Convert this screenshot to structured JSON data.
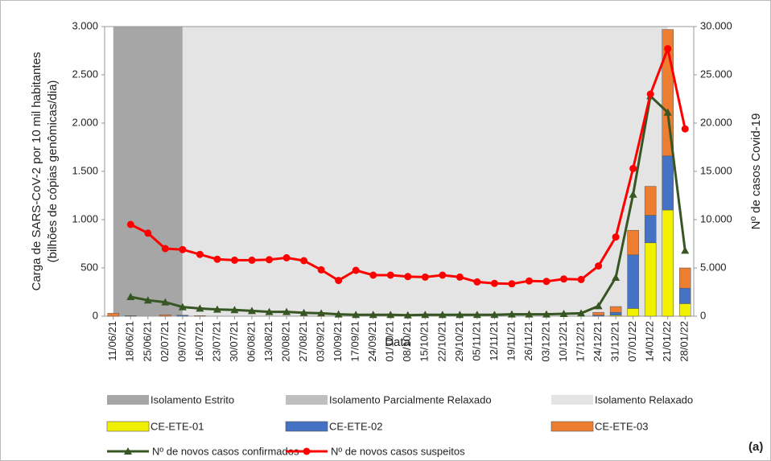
{
  "chart_data": {
    "type": "bar-line",
    "x_label": "Data",
    "y_label": [
      "Carga de SARS-CoV-2 por 10 mil habitantes",
      "(bilhões de cópias genômicas/dia)"
    ],
    "y2_label": "Nº de casos Covid-19",
    "annotation": "(a)",
    "categories": [
      "11/06/21",
      "18/06/21",
      "25/06/21",
      "02/07/21",
      "09/07/21",
      "16/07/21",
      "23/07/21",
      "30/07/21",
      "06/08/21",
      "13/08/21",
      "20/08/21",
      "27/08/21",
      "03/09/21",
      "10/09/21",
      "17/09/21",
      "24/09/21",
      "01/10/21",
      "08/10/21",
      "15/10/21",
      "22/10/21",
      "29/10/21",
      "05/11/21",
      "12/11/21",
      "19/11/21",
      "26/11/21",
      "03/12/21",
      "10/12/21",
      "17/12/21",
      "24/12/21",
      "31/12/21",
      "07/01/22",
      "14/01/22",
      "21/01/22",
      "28/01/22"
    ],
    "regions": [
      {
        "name": "Isolamento Estrito",
        "color": "#a6a6a6",
        "start": "11/06/21",
        "end": "09/07/21"
      },
      {
        "name": "Isolamento Parcialmente Relaxado",
        "color": "#bfbfbf"
      },
      {
        "name": "Isolamento Relaxado",
        "color": "#e4e4e4",
        "start": "09/07/21",
        "end": "21/01/22"
      }
    ],
    "ylim": [
      0,
      3000
    ],
    "yticks": [
      0,
      {
        "value": 500,
        "label": "500"
      },
      {
        "value": 1000,
        "label": "1.000"
      },
      {
        "value": 1500,
        "label": "1.500"
      },
      {
        "value": 2000,
        "label": "2.000"
      },
      {
        "value": 2500,
        "label": "2.500"
      },
      {
        "value": 3000,
        "label": "3.000"
      }
    ],
    "y2lim": [
      0,
      30000
    ],
    "y2ticks": [
      0,
      {
        "value": 5000,
        "label": "5.000"
      },
      {
        "value": 10000,
        "label": "10.000"
      },
      {
        "value": 15000,
        "label": "15.000"
      },
      {
        "value": 20000,
        "label": "20.000"
      },
      {
        "value": 25000,
        "label": "25.000"
      },
      {
        "value": 30000,
        "label": "30.000"
      }
    ],
    "series": [
      {
        "name": "CE-ETE-01",
        "kind": "bar",
        "color": "#f0f000",
        "values": [
          0,
          0,
          0,
          0,
          0,
          0,
          0,
          0,
          0,
          0,
          0,
          0,
          0,
          0,
          0,
          0,
          0,
          0,
          0,
          0,
          0,
          0,
          0,
          0,
          0,
          0,
          0,
          0,
          0,
          10,
          80,
          760,
          1100,
          130
        ]
      },
      {
        "name": "CE-ETE-02",
        "kind": "bar",
        "color": "#4472c4",
        "values": [
          0,
          5,
          0,
          0,
          10,
          0,
          0,
          0,
          0,
          0,
          0,
          0,
          0,
          0,
          0,
          0,
          0,
          0,
          0,
          0,
          0,
          0,
          0,
          0,
          0,
          0,
          0,
          0,
          10,
          30,
          555,
          285,
          560,
          160
        ]
      },
      {
        "name": "CE-ETE-03",
        "kind": "bar",
        "color": "#ed7d31",
        "values": [
          30,
          0,
          0,
          15,
          0,
          5,
          0,
          0,
          0,
          0,
          0,
          0,
          0,
          0,
          0,
          0,
          0,
          0,
          0,
          0,
          0,
          0,
          0,
          0,
          0,
          0,
          0,
          0,
          30,
          60,
          255,
          300,
          1310,
          210
        ]
      },
      {
        "name": "Nº de novos casos confirmados",
        "kind": "line",
        "axis": "y2",
        "color": "#375623",
        "marker": "triangle",
        "values": [
          null,
          2000,
          1650,
          1450,
          950,
          800,
          700,
          650,
          550,
          450,
          450,
          350,
          300,
          200,
          150,
          150,
          150,
          100,
          150,
          150,
          150,
          150,
          150,
          200,
          200,
          200,
          250,
          300,
          1050,
          4000,
          12600,
          22800,
          21100,
          6800
        ]
      },
      {
        "name": "Nº de novos casos suspeitos",
        "kind": "line",
        "axis": "y2",
        "color": "#ff0000",
        "marker": "circle",
        "values": [
          null,
          9500,
          8600,
          7000,
          6900,
          6400,
          5900,
          5800,
          5800,
          5850,
          6050,
          5750,
          4800,
          3700,
          4750,
          4250,
          4250,
          4100,
          4050,
          4250,
          4050,
          3550,
          3400,
          3350,
          3650,
          3600,
          3850,
          3800,
          5200,
          8200,
          15300,
          23000,
          27700,
          19400
        ]
      }
    ]
  }
}
